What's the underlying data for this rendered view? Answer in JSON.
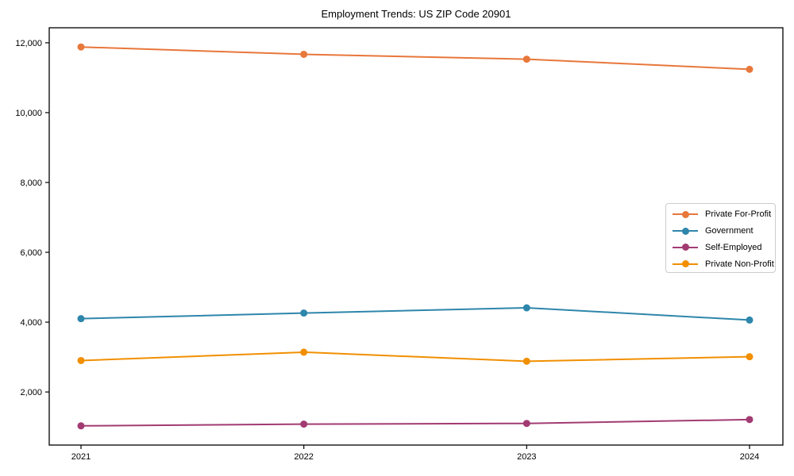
{
  "title": "Employment Trends: US ZIP Code 20901",
  "chart_data": {
    "type": "line",
    "title": "Employment Trends: US ZIP Code 20901",
    "xlabel": "",
    "ylabel": "",
    "grid": false,
    "legend_position": "center-right",
    "categories": [
      "2021",
      "2022",
      "2023",
      "2024"
    ],
    "series": [
      {
        "name": "Private For-Profit",
        "color": "#e8773b",
        "values": [
          11880,
          11670,
          11530,
          11240
        ]
      },
      {
        "name": "Government",
        "color": "#2e86ab",
        "values": [
          4100,
          4260,
          4410,
          4060
        ]
      },
      {
        "name": "Self-Employed",
        "color": "#a23b72",
        "values": [
          1030,
          1080,
          1100,
          1210
        ]
      },
      {
        "name": "Private Non-Profit",
        "color": "#f18f01",
        "values": [
          2900,
          3140,
          2880,
          3010
        ]
      }
    ],
    "yticks": [
      2000,
      4000,
      6000,
      8000,
      10000,
      12000
    ],
    "ytick_labels": [
      "2,000",
      "4,000",
      "6,000",
      "8,000",
      "10,000",
      "12,000"
    ],
    "ylim": [
      480,
      12430
    ]
  }
}
